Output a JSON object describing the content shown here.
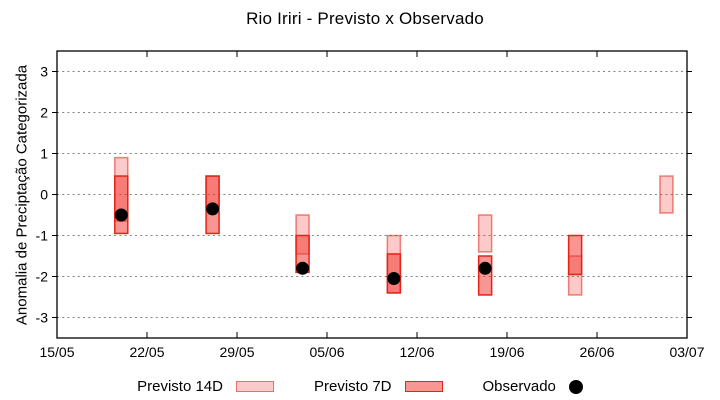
{
  "window": {
    "background": "#ffffff"
  },
  "chart_data": {
    "type": "bar",
    "subtype": "range-bars-with-observed-points",
    "title": "Rio Iriri - Previsto x Observado",
    "xlabel": "",
    "ylabel": "Anomalia de Preciptação Categorizada",
    "x_tick_labels": [
      "15/05",
      "22/05",
      "29/05",
      "05/06",
      "12/06",
      "19/06",
      "26/06",
      "03/07"
    ],
    "x_tick_days": [
      0,
      7,
      14,
      21,
      28,
      35,
      42,
      49
    ],
    "x_range_days": [
      0,
      49
    ],
    "y_ticks": [
      -3,
      -2,
      -1,
      0,
      1,
      2,
      3
    ],
    "ylim": [
      -3.5,
      3.5
    ],
    "grid": "horizontal-dotted",
    "legend_position": "below-plot",
    "legend": [
      {
        "label": "Previsto 14D",
        "series": "previsto_14d"
      },
      {
        "label": "Previsto 7D",
        "series": "previsto_7d"
      },
      {
        "label": "Observado",
        "series": "observado"
      }
    ],
    "series": [
      {
        "date": "20/05",
        "day": 5.0,
        "previsto_14d": [
          -0.65,
          0.9
        ],
        "previsto_7d": [
          -0.95,
          0.45
        ],
        "observado": -0.5
      },
      {
        "date": "27/05",
        "day": 12.1,
        "previsto_14d": [
          -0.3,
          0.45
        ],
        "previsto_7d": [
          -0.95,
          0.45
        ],
        "observado": -0.35
      },
      {
        "date": "03/06",
        "day": 19.1,
        "previsto_14d": [
          -1.45,
          -0.5
        ],
        "previsto_7d": [
          -1.9,
          -1.0
        ],
        "observado": -1.8
      },
      {
        "date": "10/06",
        "day": 26.2,
        "previsto_14d": [
          -2.4,
          -1.0
        ],
        "previsto_7d": [
          -2.4,
          -1.45
        ],
        "observado": -2.05
      },
      {
        "date": "17/06",
        "day": 33.3,
        "previsto_14d": [
          -1.4,
          -0.5
        ],
        "previsto_7d": [
          -2.45,
          -1.5
        ],
        "observado": -1.8
      },
      {
        "date": "24/06",
        "day": 40.3,
        "previsto_14d": [
          -2.45,
          -1.5
        ],
        "previsto_7d": [
          -1.95,
          -1.0
        ],
        "observado": null
      },
      {
        "date": "01/07",
        "day": 47.4,
        "previsto_14d": [
          -0.45,
          0.45
        ],
        "previsto_7d": null,
        "observado": null
      }
    ],
    "colors": {
      "previsto_14d_fill": "rgba(240,45,38,0.25)",
      "previsto_14d_fill_hex": "#fbc9c7",
      "previsto_14d_border": "rgba(230,35,27,0.55)",
      "previsto_14d_border_hex": "#f18682",
      "previsto_7d_fill": "rgba(240,45,38,0.5)",
      "previsto_7d_fill_hex": "#f79692",
      "previsto_7d_border": "#e62318",
      "overlap_hex": "#f37b75",
      "observed": "#000000",
      "grid": "#848484",
      "axis": "#000000",
      "text": "#000000"
    }
  }
}
